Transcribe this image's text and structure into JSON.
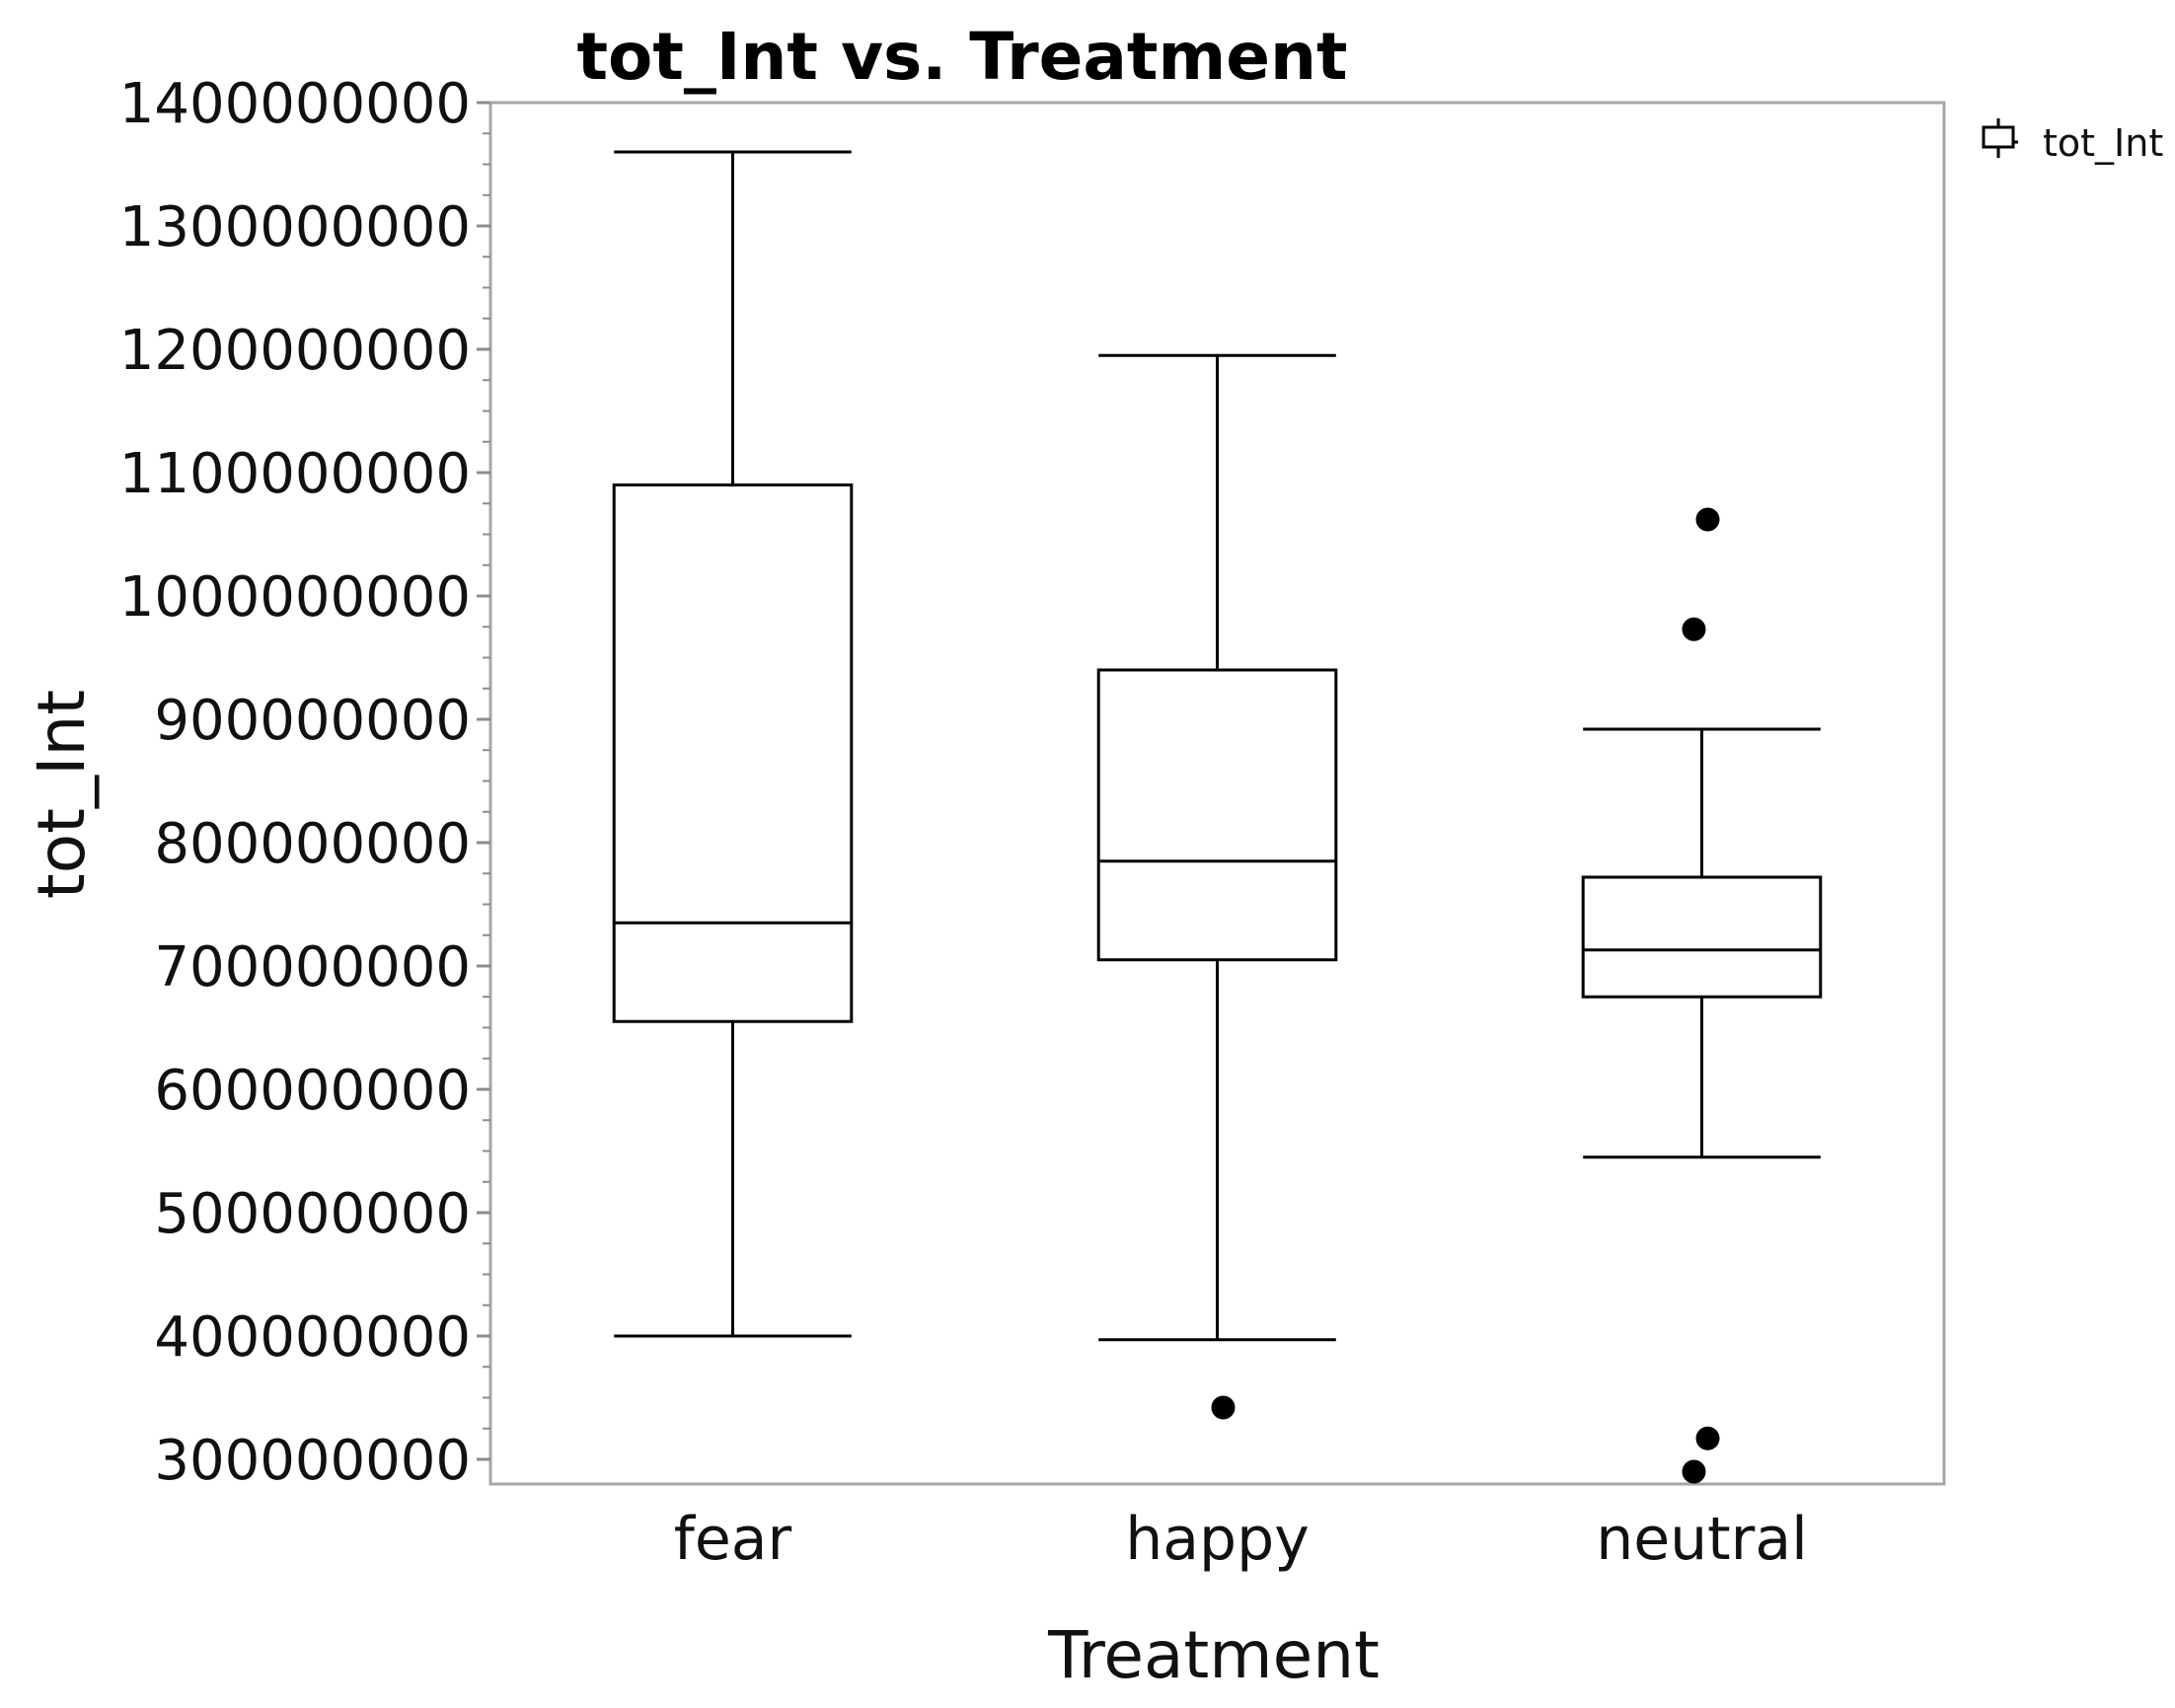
{
  "chart_data": {
    "type": "box",
    "title": "tot_Int vs. Treatment",
    "xlabel": "Treatment",
    "ylabel": "tot_Int",
    "ylim": [
      280000000,
      1400000000
    ],
    "yticks": [
      300000000,
      400000000,
      500000000,
      600000000,
      700000000,
      800000000,
      900000000,
      1000000000,
      1100000000,
      1200000000,
      1300000000,
      1400000000
    ],
    "categories": [
      "fear",
      "happy",
      "neutral"
    ],
    "series": [
      {
        "name": "tot_Int",
        "boxes": [
          {
            "category": "fear",
            "min": 400000000,
            "q1": 655000000,
            "median": 735000000,
            "q3": 1090000000,
            "max": 1360000000,
            "outliers": []
          },
          {
            "category": "happy",
            "min": 397000000,
            "q1": 705000000,
            "median": 785000000,
            "q3": 940000000,
            "max": 1195000000,
            "outliers": [
              342000000
            ]
          },
          {
            "category": "neutral",
            "min": 545000000,
            "q1": 675000000,
            "median": 713000000,
            "q3": 772000000,
            "max": 892000000,
            "outliers": [
              1062000000,
              973000000,
              317000000,
              290000000
            ]
          }
        ]
      }
    ],
    "legend": {
      "position": "top-right",
      "entries": [
        "tot_Int"
      ]
    },
    "grid": false,
    "colors": {
      "line": "#000000",
      "frame": "#a6a6a6",
      "tick": "#8c8c8c"
    }
  }
}
